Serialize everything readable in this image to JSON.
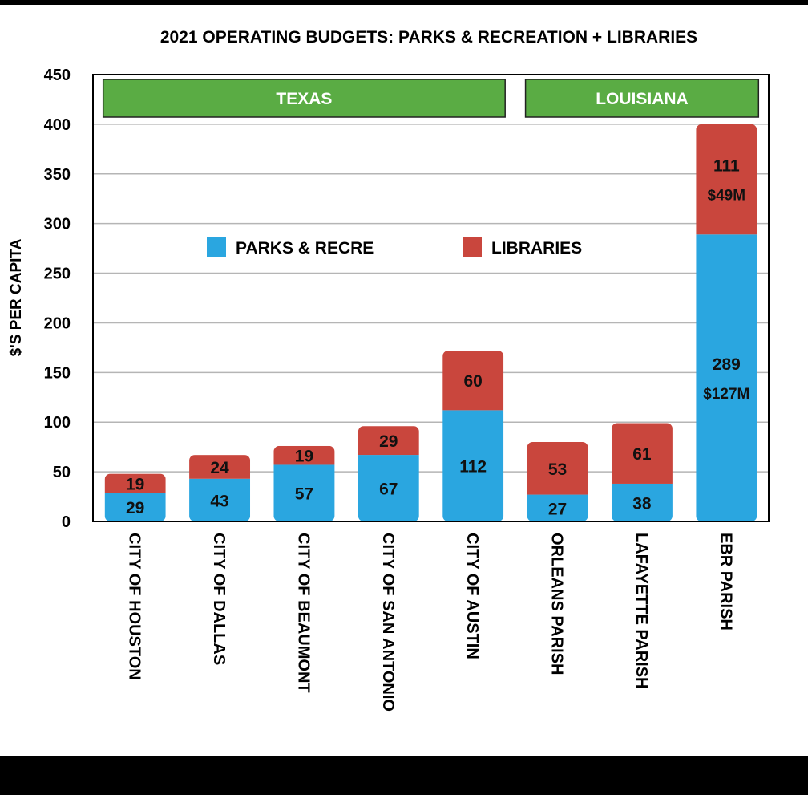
{
  "chart_data": {
    "type": "bar",
    "stacked": true,
    "title": "2021 OPERATING BUDGETS:  PARKS & RECREATION + LIBRARIES",
    "ylabel": "$'S PER CAPITA",
    "xlabel": "",
    "ylim": [
      0,
      450
    ],
    "yticks": [
      0,
      50,
      100,
      150,
      200,
      250,
      300,
      350,
      400,
      450
    ],
    "grid": true,
    "legend_position": "upper-center",
    "categories": [
      "CITY OF HOUSTON",
      "CITY OF DALLAS",
      "CITY OF BEAUMONT",
      "CITY OF SAN ANTONIO",
      "CITY OF AUSTIN",
      "ORLEANS PARISH",
      "LAFAYETTE PARISH",
      "EBR PARISH"
    ],
    "series": [
      {
        "name": "PARKS & RECRE",
        "color": "#2aa6e0",
        "values": [
          29,
          43,
          57,
          67,
          112,
          27,
          38,
          289
        ]
      },
      {
        "name": "LIBRARIES",
        "color": "#c9463d",
        "values": [
          19,
          24,
          19,
          29,
          60,
          53,
          61,
          111
        ]
      }
    ],
    "extra_labels": [
      {
        "category": "EBR PARISH",
        "series": "LIBRARIES",
        "text": "$49M"
      },
      {
        "category": "EBR PARISH",
        "series": "PARKS & RECRE",
        "text": "$127M"
      }
    ],
    "groups": [
      {
        "name": "TEXAS",
        "categories": [
          "CITY OF HOUSTON",
          "CITY OF DALLAS",
          "CITY OF BEAUMONT",
          "CITY OF SAN ANTONIO",
          "CITY OF AUSTIN"
        ],
        "color": "#5aac44"
      },
      {
        "name": "LOUISIANA",
        "categories": [
          "ORLEANS PARISH",
          "LAFAYETTE PARISH",
          "EBR PARISH"
        ],
        "color": "#5aac44"
      }
    ]
  }
}
